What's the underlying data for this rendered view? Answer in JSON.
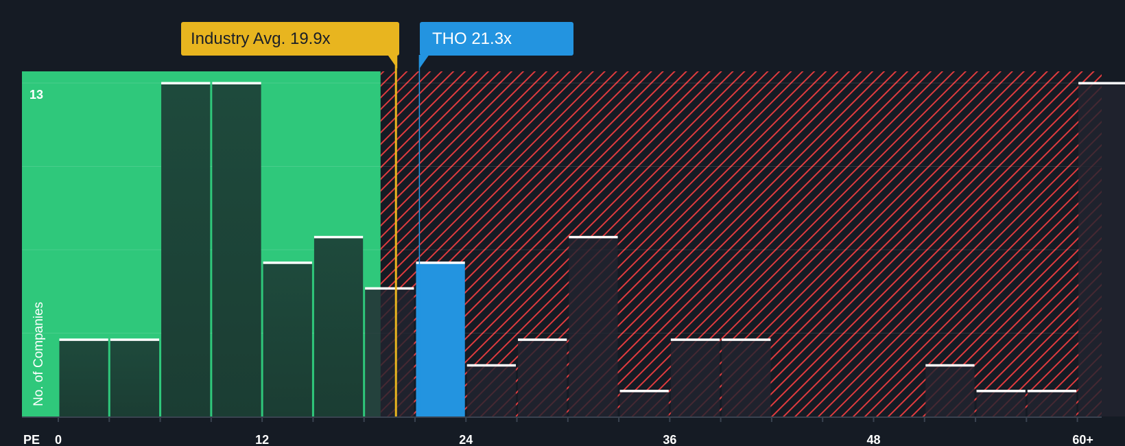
{
  "chart_data": {
    "type": "bar",
    "xlabel": "PE",
    "ylabel": "No. of Companies",
    "y_max_label": "13",
    "ylim": [
      0,
      13.5
    ],
    "x_ticks": [
      "0",
      "12",
      "24",
      "36",
      "48",
      "60+"
    ],
    "x_tick_values": [
      0,
      12,
      24,
      36,
      48,
      60
    ],
    "bin_width": 3,
    "bins": [
      {
        "x0": 0,
        "value": 3
      },
      {
        "x0": 3,
        "value": 3
      },
      {
        "x0": 6,
        "value": 13
      },
      {
        "x0": 9,
        "value": 13
      },
      {
        "x0": 12,
        "value": 6
      },
      {
        "x0": 15,
        "value": 7
      },
      {
        "x0": 18,
        "value": 5
      },
      {
        "x0": 21,
        "value": 6,
        "highlight": true
      },
      {
        "x0": 24,
        "value": 2
      },
      {
        "x0": 27,
        "value": 3
      },
      {
        "x0": 30,
        "value": 7
      },
      {
        "x0": 33,
        "value": 1
      },
      {
        "x0": 36,
        "value": 3
      },
      {
        "x0": 39,
        "value": 3
      },
      {
        "x0": 42,
        "value": 0
      },
      {
        "x0": 45,
        "value": 0
      },
      {
        "x0": 48,
        "value": 0
      },
      {
        "x0": 51,
        "value": 2
      },
      {
        "x0": 54,
        "value": 1
      },
      {
        "x0": 57,
        "value": 1
      },
      {
        "x0": 60,
        "value": 13
      }
    ],
    "industry_avg": {
      "label": "Industry Avg. 19.9x",
      "value": 19.9
    },
    "company": {
      "label": "THO 21.3x",
      "value": 21.3
    },
    "colors": {
      "background": "#151b24",
      "good_zone": "#2fc87b",
      "bad_zone": "#e03b3e",
      "industry": "#e8b51f",
      "company": "#2394e0",
      "bar_dark": "#1e4a3c",
      "bar_overlay": "#22252f"
    }
  }
}
